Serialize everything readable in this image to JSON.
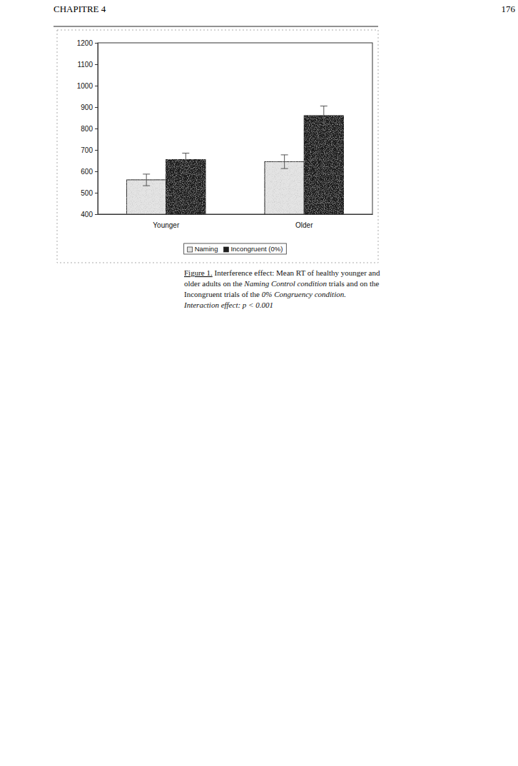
{
  "header": {
    "left": "CHAPITRE 4",
    "right": "176"
  },
  "chart_data": {
    "type": "bar",
    "categories": [
      "Younger",
      "Older"
    ],
    "series": [
      {
        "name": "Naming",
        "color": "#e4e4e4",
        "values": [
          560,
          645
        ],
        "errors": [
          27,
          32
        ]
      },
      {
        "name": "Incongruent (0%)",
        "color": "#1e1e1e",
        "values": [
          655,
          860
        ],
        "errors": [
          30,
          45
        ]
      }
    ],
    "ylim": [
      400,
      1200
    ],
    "yticks": [
      400,
      500,
      600,
      700,
      800,
      900,
      1000,
      1100,
      1200
    ],
    "legend": "bottom",
    "grid": false
  },
  "caption": {
    "lines": [
      [
        {
          "text": "Figure 1.",
          "style": "underline"
        },
        {
          "text": " Interference effect: Mean RT of healthy younger and",
          "style": "normal"
        }
      ],
      [
        {
          "text": "older adults on the ",
          "style": "normal"
        },
        {
          "text": "Naming Control condition",
          "style": "italic"
        },
        {
          "text": " trials and on the",
          "style": "normal"
        }
      ],
      [
        {
          "text": "Incongruent trials of the ",
          "style": "normal"
        },
        {
          "text": "0% Congruency condition.",
          "style": "italic"
        }
      ],
      [
        {
          "text": "Interaction effect: p < 0.001",
          "style": "italic"
        }
      ]
    ]
  }
}
